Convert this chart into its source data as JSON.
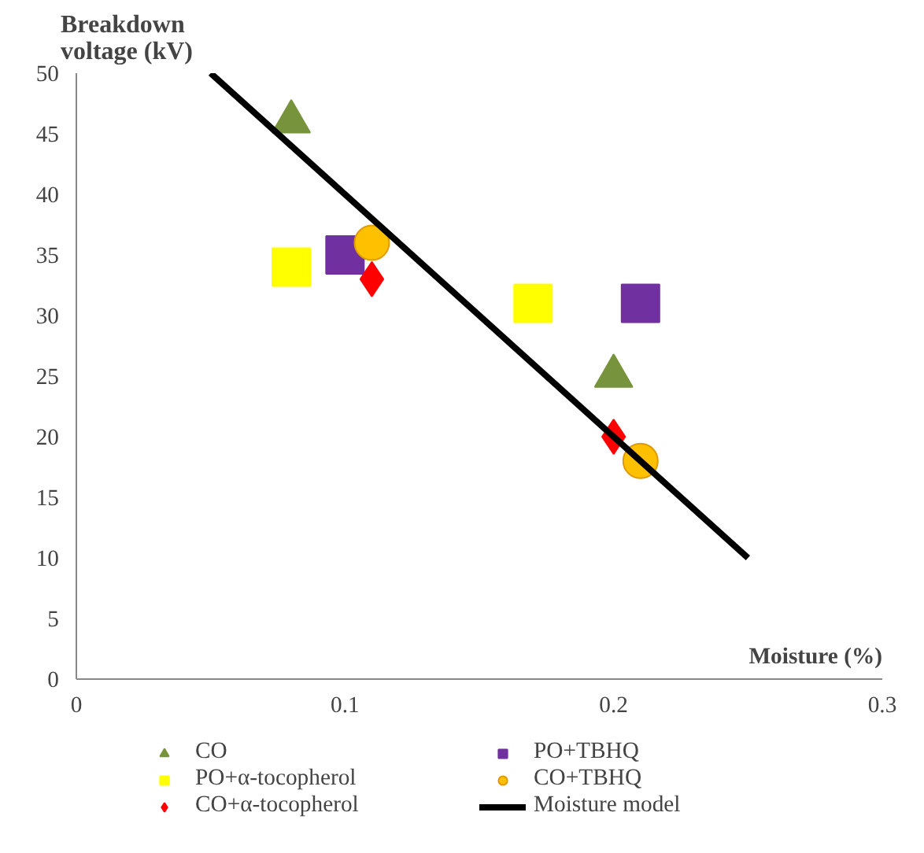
{
  "chart_data": {
    "type": "scatter",
    "xlabel": "Moisture (%)",
    "ylabel": "Breakdown voltage (kV)",
    "xlim": [
      0,
      0.3
    ],
    "xticks": [
      0,
      0.1,
      0.2,
      0.3
    ],
    "ylim": [
      0,
      50
    ],
    "yticks": [
      0,
      5,
      10,
      15,
      20,
      25,
      30,
      35,
      40,
      45,
      50
    ],
    "grid": false,
    "legend": "bottom",
    "series": [
      {
        "name": "CO",
        "color": "#77933c",
        "marker": "triangle",
        "x": [
          0.08,
          0.2
        ],
        "values": [
          46,
          25
        ]
      },
      {
        "name": "PO+TBHQ",
        "color": "#7030a0",
        "marker": "square",
        "x": [
          0.1,
          0.21
        ],
        "values": [
          35,
          31
        ]
      },
      {
        "name": "PO+α-tocopherol",
        "color": "#ffff00",
        "marker": "square",
        "x": [
          0.08,
          0.17
        ],
        "values": [
          34,
          31
        ]
      },
      {
        "name": "CO+TBHQ",
        "color": "#ffc000",
        "marker": "circle",
        "x": [
          0.11,
          0.21
        ],
        "values": [
          36,
          18
        ]
      },
      {
        "name": "CO+α-tocopherol",
        "color": "#ff0000",
        "marker": "diamond",
        "x": [
          0.11,
          0.2
        ],
        "values": [
          33,
          20
        ]
      },
      {
        "name": "Moisture model",
        "type": "line",
        "color": "#000000",
        "marker": "none",
        "x": [
          0.05,
          0.25
        ],
        "values": [
          50,
          10
        ]
      }
    ]
  }
}
